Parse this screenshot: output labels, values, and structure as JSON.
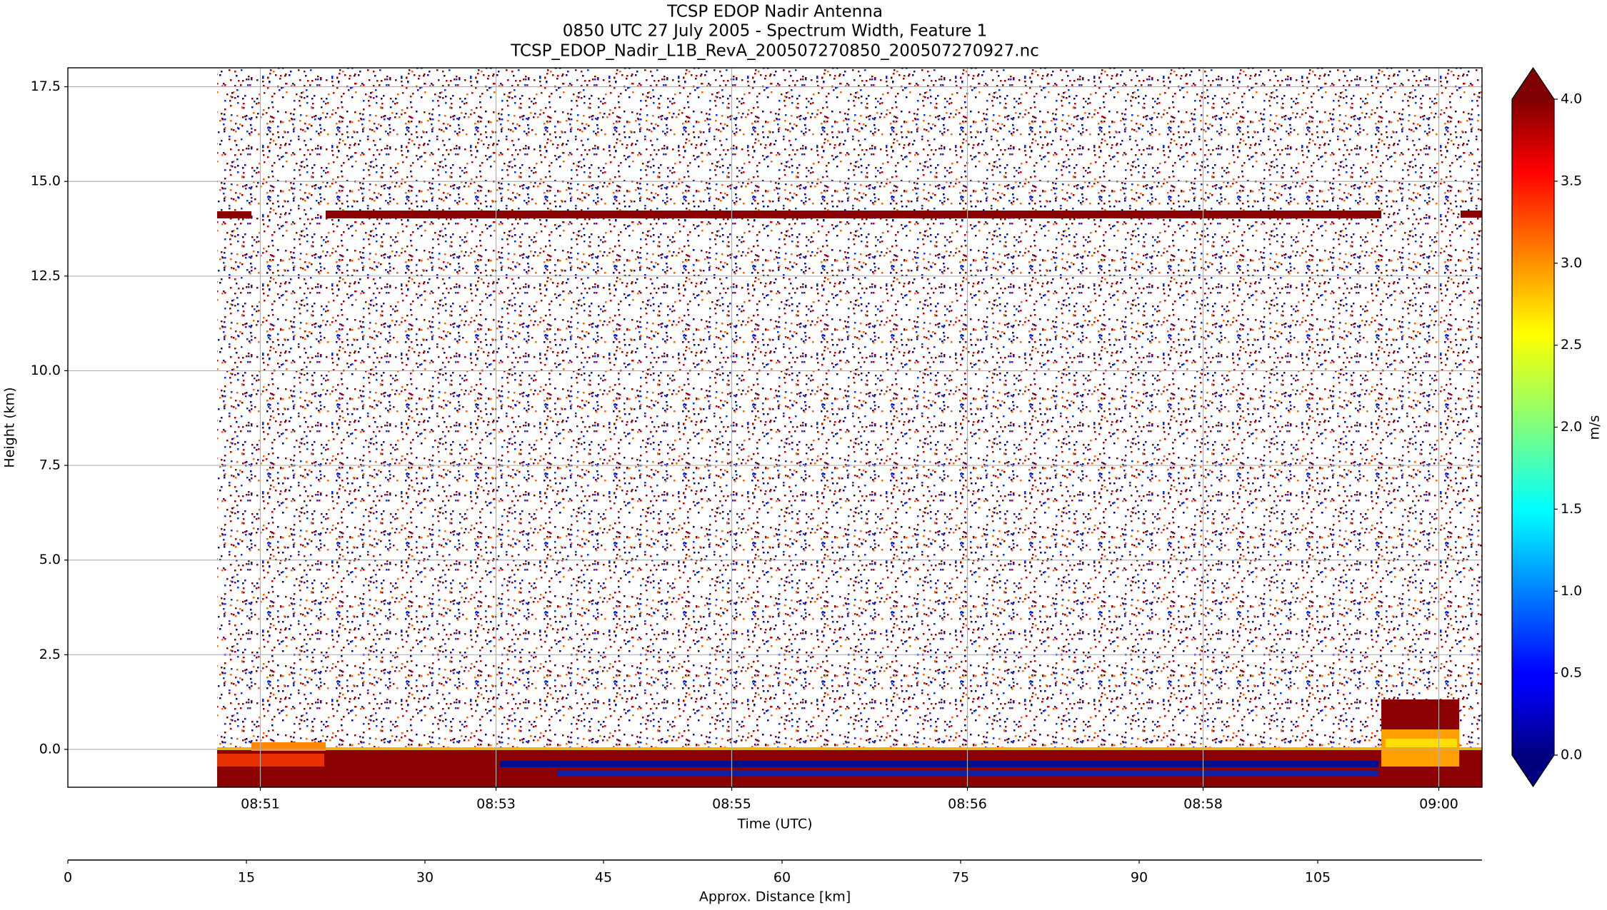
{
  "chart_data": {
    "type": "heatmap",
    "title": "TCSP EDOP Nadir Antenna",
    "subtitle": "0850 UTC 27 July 2005 - Spectrum Width, Feature 1",
    "filename": "TCSP_EDOP_Nadir_L1B_RevA_200507270850_200507270927.nc",
    "xlabel": "Time (UTC)",
    "ylabel": "Height (km)",
    "x2label": "Approx. Distance [km]",
    "colorbar_label": "m/s",
    "colormap": "jet",
    "extend": "both",
    "grid": true,
    "xlim": [
      49.53,
      60.33
    ],
    "xticks": [
      {
        "value": 51.0,
        "label": "08:51"
      },
      {
        "value": 52.8,
        "label": "08:53"
      },
      {
        "value": 54.6,
        "label": "08:55"
      },
      {
        "value": 56.4,
        "label": "08:56"
      },
      {
        "value": 58.2,
        "label": "08:58"
      },
      {
        "value": 60.0,
        "label": "09:00"
      }
    ],
    "ylim": [
      -1,
      18
    ],
    "yticks": [
      {
        "value": 0,
        "label": "0.0"
      },
      2.5,
      {
        "value": 5,
        "label": "5.0"
      },
      7.5,
      {
        "value": 10,
        "label": "10.0"
      },
      12.5,
      {
        "value": 15,
        "label": "15.0"
      },
      17.5
    ],
    "x2lim": [
      0,
      118.8
    ],
    "x2ticks": [
      0,
      15,
      30,
      45,
      60,
      75,
      90,
      105
    ],
    "clim": [
      0,
      4
    ],
    "cticks": [
      {
        "value": 0,
        "label": "0.0"
      },
      0.5,
      {
        "value": 1,
        "label": "1.0"
      },
      1.5,
      {
        "value": 2,
        "label": "2.0"
      },
      2.5,
      {
        "value": 3,
        "label": "3.0"
      },
      3.5,
      {
        "value": 4,
        "label": "4.0"
      }
    ]
  }
}
